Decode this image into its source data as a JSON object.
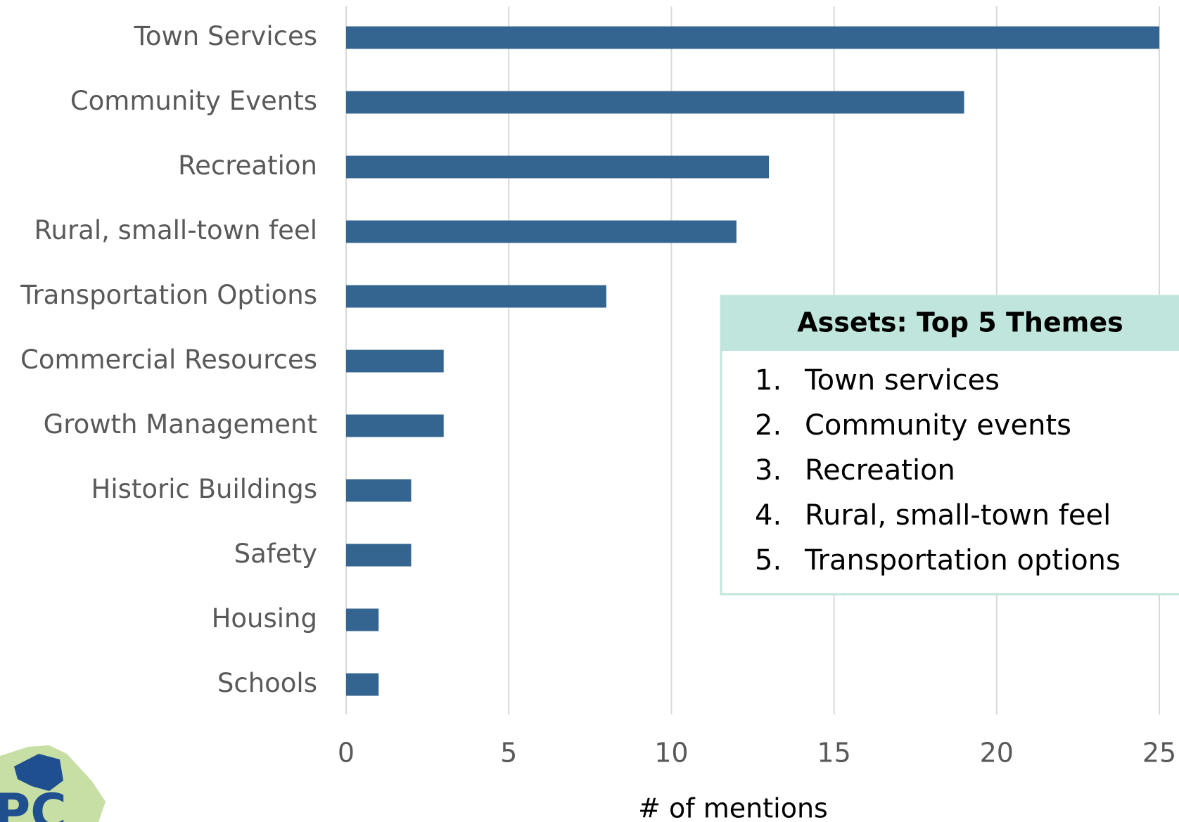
{
  "chart_data": {
    "type": "bar",
    "orientation": "horizontal",
    "categories": [
      "Town Services",
      "Community Events",
      "Recreation",
      "Rural, small-town feel",
      "Transportation Options",
      "Commercial Resources",
      "Growth Management",
      "Historic Buildings",
      "Safety",
      "Housing",
      "Schools"
    ],
    "values": [
      25,
      19,
      13,
      12,
      8,
      3,
      3,
      2,
      2,
      1,
      1
    ],
    "color": "#336590",
    "xlabel": "# of mentions",
    "xlim": [
      0,
      25
    ],
    "xticks": [
      0,
      5,
      10,
      15,
      20,
      25
    ],
    "grid": true,
    "annotation": {
      "title": "Assets: Top 5 Themes",
      "items": [
        {
          "number": "1.",
          "text": "Town services"
        },
        {
          "number": "2.",
          "text": "Community events"
        },
        {
          "number": "3.",
          "text": "Recreation"
        },
        {
          "number": "4.",
          "text": "Rural, small-town feel"
        },
        {
          "number": "5.",
          "text": "Transportation options"
        }
      ]
    }
  }
}
